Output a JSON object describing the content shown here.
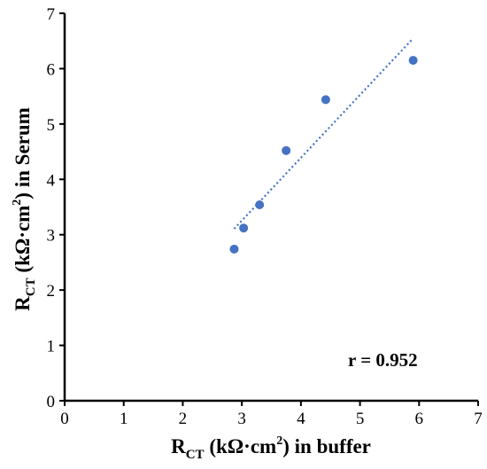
{
  "chart_data": {
    "type": "scatter",
    "xlabel": {
      "base": "R",
      "sub": "CT",
      "rest": " (kΩ·cm",
      "sup": "2",
      "tail": ") in buffer"
    },
    "ylabel": {
      "base": "R",
      "sub": "CT",
      "rest": " (kΩ·cm",
      "sup": "2",
      "tail": ") in Serum"
    },
    "xlim": [
      0,
      7
    ],
    "ylim": [
      0,
      7
    ],
    "xticks": [
      "0",
      "1",
      "2",
      "3",
      "4",
      "5",
      "6",
      "7"
    ],
    "yticks": [
      "0",
      "1",
      "2",
      "3",
      "4",
      "5",
      "6",
      "7"
    ],
    "points": [
      {
        "x": 2.87,
        "y": 2.74
      },
      {
        "x": 3.03,
        "y": 3.12
      },
      {
        "x": 3.3,
        "y": 3.54
      },
      {
        "x": 3.75,
        "y": 4.52
      },
      {
        "x": 4.42,
        "y": 5.44
      },
      {
        "x": 5.9,
        "y": 6.15
      }
    ],
    "trendline": {
      "style": "dotted",
      "x_start": 2.87,
      "x_end": 5.9
    },
    "annotation": "r = 0.952",
    "grid": false,
    "marker_color": "#4472C4",
    "trend_color": "#4472C4"
  }
}
